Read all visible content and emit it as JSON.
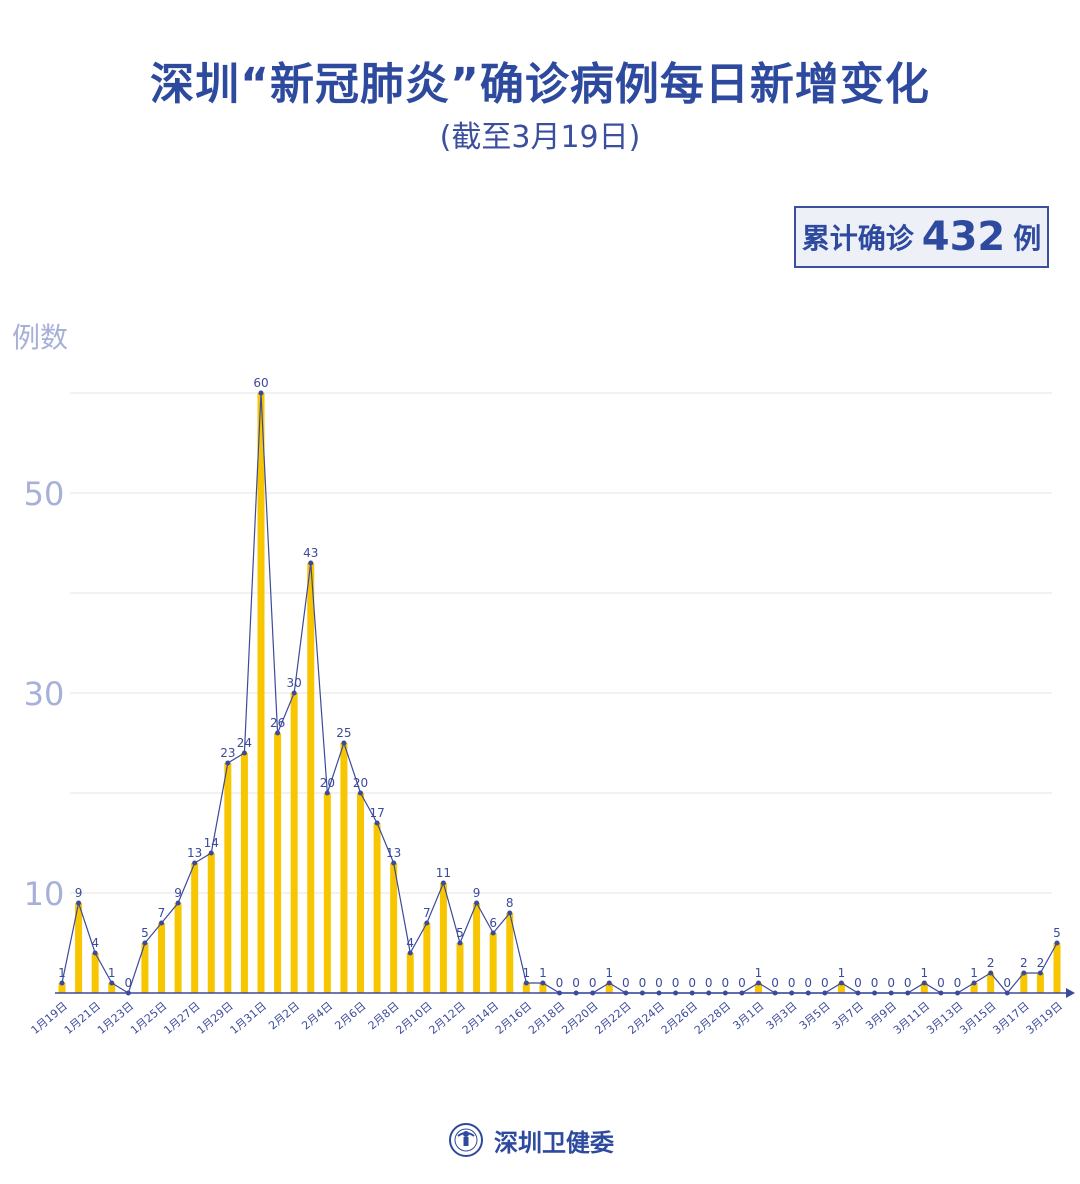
{
  "header": {
    "title": "深圳“新冠肺炎”确诊病例每日新增变化",
    "subtitle": "(截至3月19日)"
  },
  "total": {
    "prefix": "累计确诊",
    "value": "432",
    "suffix": "例"
  },
  "footer": {
    "org": "深圳卫健委",
    "logo_icon": "shenzhen-health-commission-logo"
  },
  "colors": {
    "bar": "#f7c600",
    "line": "#3b4a9c",
    "text": "#2e4a9e",
    "axis_tick": "#a7b0d8",
    "grid": "#e4e4e4"
  },
  "chart_data": {
    "type": "bar+line",
    "ylabel": "例数",
    "ylim": [
      0,
      60
    ],
    "yticks": [
      10,
      30,
      50
    ],
    "grid": true,
    "categories": [
      "1月19日",
      "1月20日",
      "1月21日",
      "1月22日",
      "1月23日",
      "1月24日",
      "1月25日",
      "1月26日",
      "1月27日",
      "1月28日",
      "1月29日",
      "1月30日",
      "1月31日",
      "2月1日",
      "2月2日",
      "2月3日",
      "2月4日",
      "2月5日",
      "2月6日",
      "2月7日",
      "2月8日",
      "2月9日",
      "2月10日",
      "2月11日",
      "2月12日",
      "2月13日",
      "2月14日",
      "2月15日",
      "2月16日",
      "2月17日",
      "2月18日",
      "2月19日",
      "2月20日",
      "2月21日",
      "2月22日",
      "2月23日",
      "2月24日",
      "2月25日",
      "2月26日",
      "2月27日",
      "2月28日",
      "2月29日",
      "3月1日",
      "3月2日",
      "3月3日",
      "3月4日",
      "3月5日",
      "3月6日",
      "3月7日",
      "3月8日",
      "3月9日",
      "3月10日",
      "3月11日",
      "3月12日",
      "3月13日",
      "3月14日",
      "3月15日",
      "3月16日",
      "3月17日",
      "3月18日",
      "3月19日"
    ],
    "values": [
      1,
      9,
      4,
      1,
      0,
      5,
      7,
      9,
      13,
      14,
      23,
      24,
      60,
      26,
      30,
      43,
      20,
      25,
      20,
      17,
      13,
      4,
      7,
      11,
      5,
      9,
      6,
      8,
      1,
      1,
      0,
      0,
      0,
      1,
      0,
      0,
      0,
      0,
      0,
      0,
      0,
      0,
      1,
      0,
      0,
      0,
      0,
      1,
      0,
      0,
      0,
      0,
      1,
      0,
      0,
      1,
      2,
      0,
      2,
      2,
      5
    ],
    "label_every": 2
  }
}
